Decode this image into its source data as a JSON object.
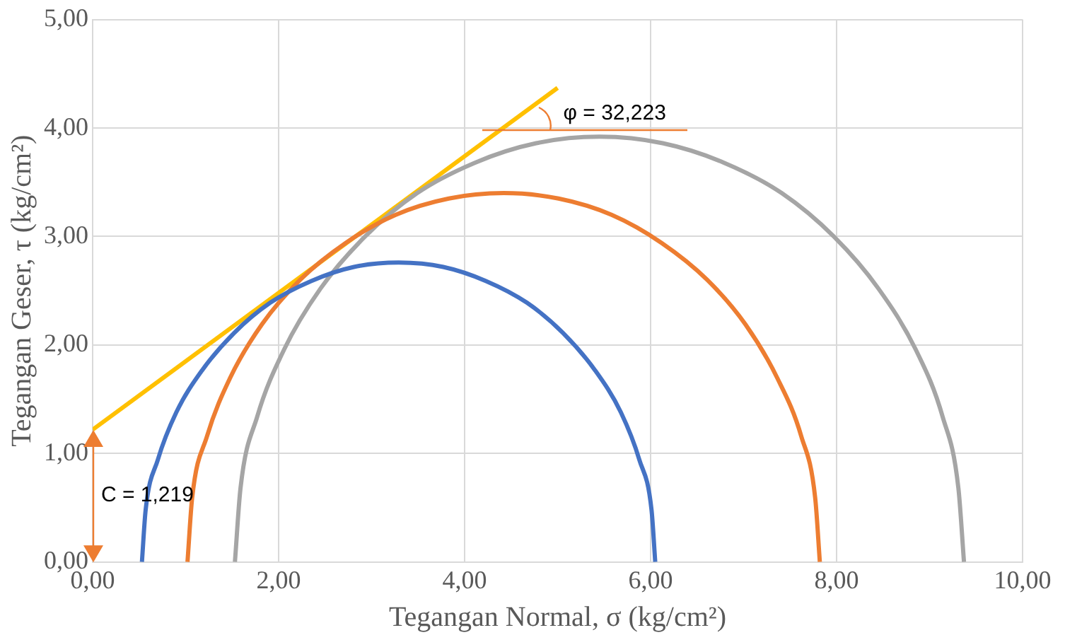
{
  "chart_data": {
    "type": "line",
    "xlabel": "Tegangan Normal, σ (kg/cm²)",
    "ylabel": "Tegangan Geser, τ (kg/cm²)",
    "xlim": [
      0,
      10
    ],
    "xticks": [
      {
        "value": 0,
        "label": "0,00"
      },
      {
        "value": 2,
        "label": "2,00"
      },
      {
        "value": 4,
        "label": "4,00"
      },
      {
        "value": 6,
        "label": "6,00"
      },
      {
        "value": 8,
        "label": "8,00"
      },
      {
        "value": 10,
        "label": "10,00"
      }
    ],
    "ylim": [
      0,
      5
    ],
    "yticks": [
      {
        "value": 0,
        "label": "0,00"
      },
      {
        "value": 1,
        "label": "1,00"
      },
      {
        "value": 2,
        "label": "2,00"
      },
      {
        "value": 3,
        "label": "3,00"
      },
      {
        "value": 4,
        "label": "4,00"
      },
      {
        "value": 5,
        "label": "5,00"
      }
    ],
    "grid": true,
    "legend": false,
    "marker": "none",
    "series": [
      {
        "color": "#4472c4",
        "x": [
          0.53,
          0.57,
          0.7,
          0.9,
          1.18,
          1.52,
          1.91,
          2.35,
          2.81,
          3.29,
          3.77,
          4.23,
          4.67,
          5.06,
          5.4,
          5.68,
          5.88,
          6.01,
          6.05
        ],
        "values": [
          0,
          0.48,
          0.94,
          1.38,
          1.77,
          2.11,
          2.39,
          2.59,
          2.72,
          2.76,
          2.72,
          2.59,
          2.39,
          2.11,
          1.77,
          1.38,
          0.94,
          0.48,
          0
        ]
      },
      {
        "color": "#ed7d31",
        "x": [
          1.02,
          1.07,
          1.23,
          1.48,
          1.82,
          2.23,
          2.72,
          3.26,
          3.83,
          4.42,
          5.01,
          5.58,
          6.12,
          6.61,
          7.02,
          7.36,
          7.62,
          7.77,
          7.82
        ],
        "values": [
          0,
          0.59,
          1.16,
          1.7,
          2.19,
          2.6,
          2.94,
          3.2,
          3.35,
          3.4,
          3.35,
          3.2,
          2.94,
          2.6,
          2.19,
          1.7,
          1.16,
          0.59,
          0
        ]
      },
      {
        "color": "#a5a5a5",
        "x": [
          1.53,
          1.59,
          1.77,
          2.06,
          2.45,
          2.93,
          3.49,
          4.11,
          4.77,
          5.45,
          6.13,
          6.79,
          7.41,
          7.97,
          8.45,
          8.85,
          9.14,
          9.31,
          9.37
        ],
        "values": [
          0,
          0.68,
          1.34,
          1.96,
          2.52,
          3,
          3.4,
          3.68,
          3.86,
          3.92,
          3.86,
          3.68,
          3.4,
          3,
          2.52,
          1.96,
          1.34,
          0.68,
          0
        ]
      },
      {
        "color": "#ffc000",
        "x": [
          0,
          5
        ],
        "values": [
          1.22,
          4.37
        ]
      }
    ],
    "annotations": [
      "φ = 32,223",
      "C = 1,219"
    ]
  }
}
